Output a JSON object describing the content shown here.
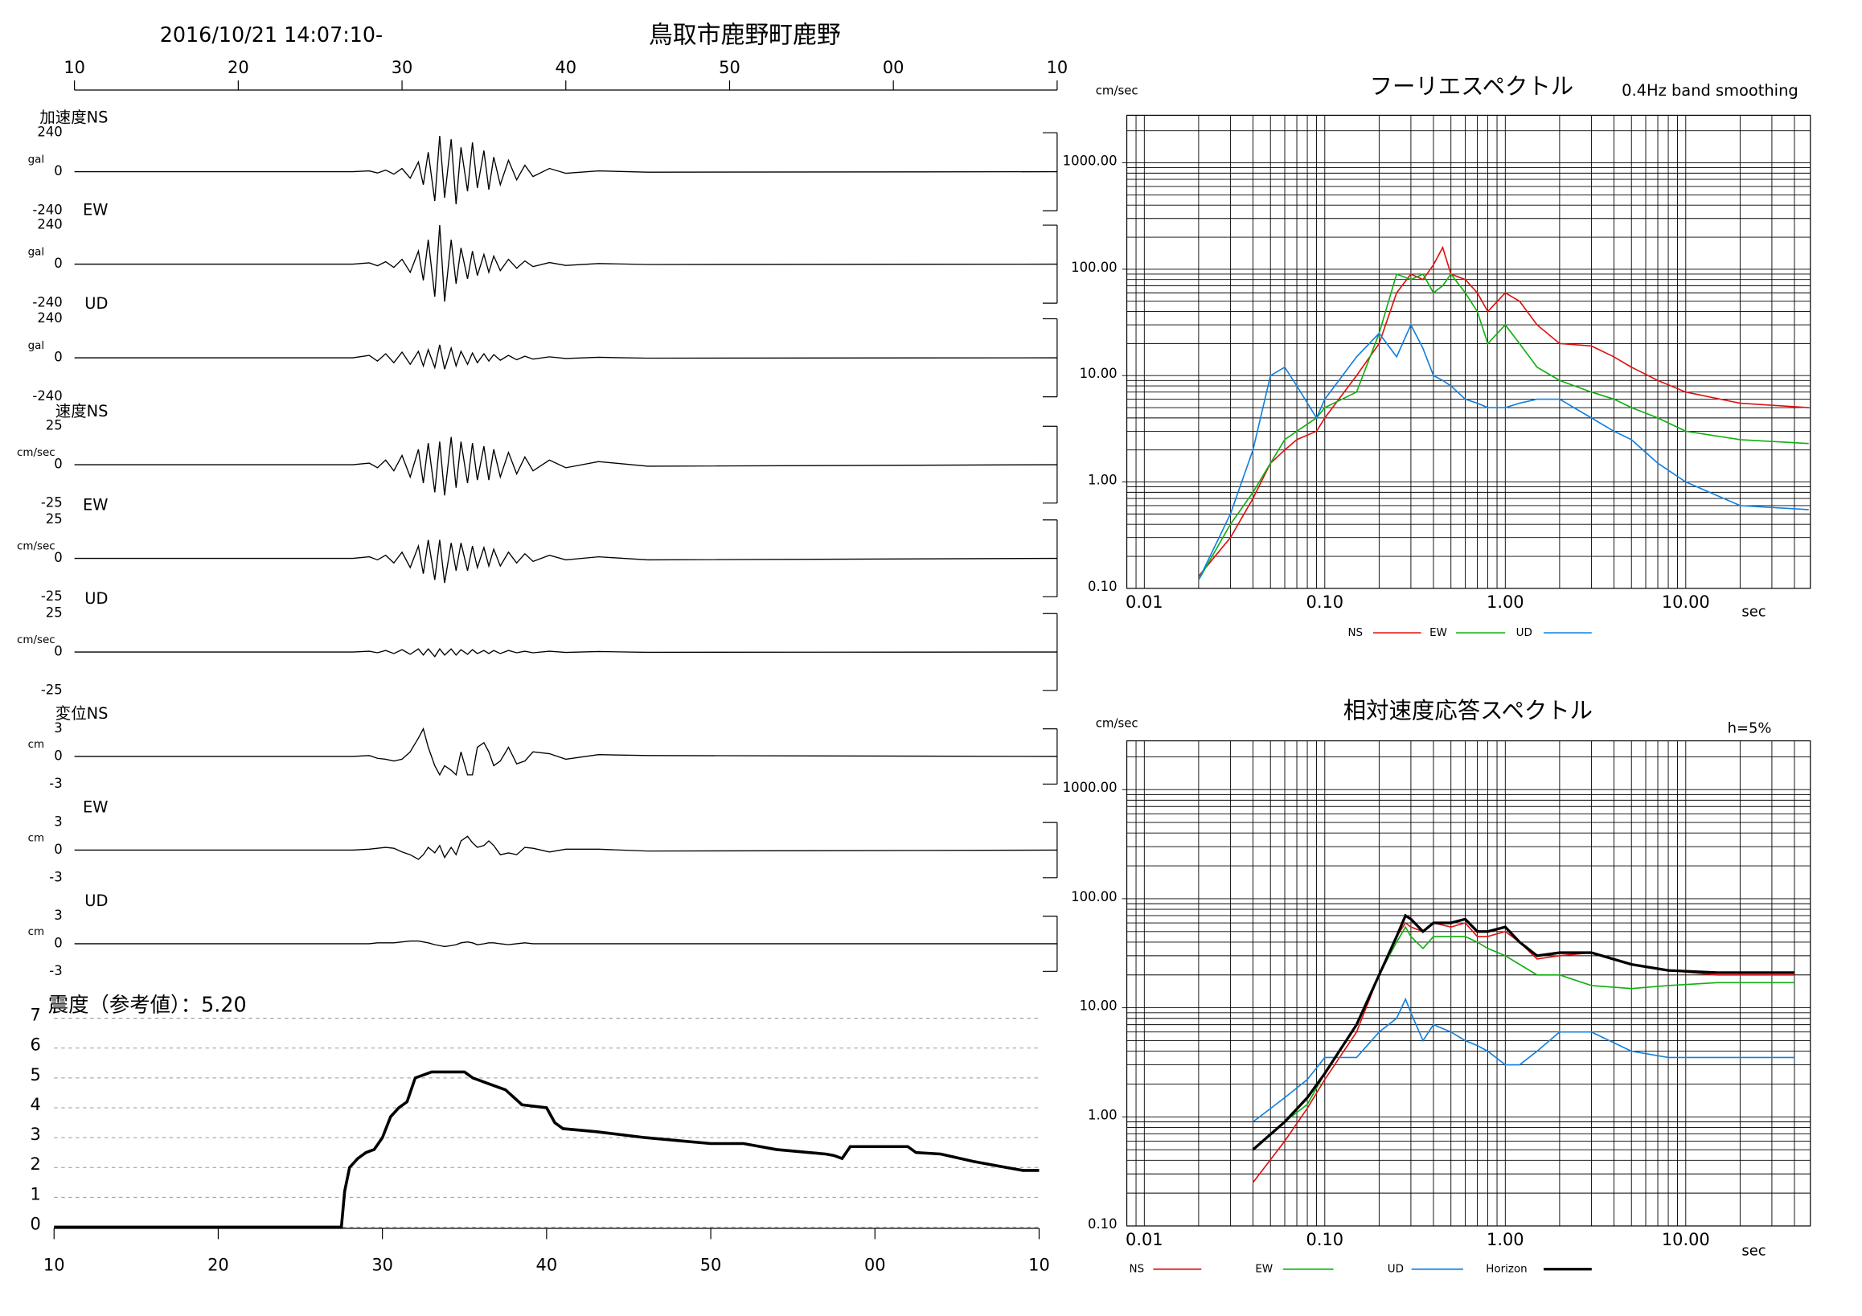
{
  "header": {
    "datetime": "2016/10/21 14:07:10-",
    "station": "鳥取市鹿野町鹿野"
  },
  "chart_data": [
    {
      "type": "line",
      "label": "加速度NS",
      "ylabel": "gal",
      "color": "#000000",
      "xlim": [
        10,
        70
      ],
      "xticks": [
        10,
        20,
        30,
        40,
        50,
        {
          "value": 60,
          "label": "00"
        },
        {
          "value": 70,
          "label": "10"
        }
      ],
      "ylim": [
        -240,
        240
      ],
      "yticks": [
        240,
        0,
        -240
      ],
      "x": [
        10,
        27,
        28,
        28.5,
        29,
        29.5,
        30,
        30.5,
        31,
        31.3,
        31.6,
        32,
        32.3,
        32.6,
        33,
        33.3,
        33.6,
        34,
        34.3,
        34.6,
        35,
        35.3,
        35.6,
        36,
        36.5,
        37,
        37.5,
        38,
        39,
        40,
        42,
        45,
        70
      ],
      "values": [
        0,
        0,
        5,
        -8,
        10,
        -15,
        20,
        -40,
        60,
        -80,
        120,
        -180,
        220,
        -160,
        200,
        -200,
        150,
        -120,
        180,
        -100,
        130,
        -110,
        90,
        -80,
        70,
        -50,
        40,
        -30,
        20,
        -10,
        5,
        -3,
        0
      ]
    },
    {
      "type": "line",
      "label": "EW",
      "ylabel": "gal",
      "color": "#000000",
      "xlim": [
        10,
        70
      ],
      "ylim": [
        -240,
        240
      ],
      "yticks": [
        240,
        0,
        -240
      ],
      "x": [
        10,
        27,
        28,
        28.5,
        29,
        29.5,
        30,
        30.5,
        31,
        31.3,
        31.6,
        32,
        32.3,
        32.6,
        33,
        33.3,
        33.6,
        34,
        34.3,
        34.6,
        35,
        35.3,
        35.6,
        36,
        36.5,
        37,
        37.5,
        38,
        39,
        40,
        42,
        45,
        70
      ],
      "values": [
        0,
        0,
        8,
        -10,
        15,
        -20,
        30,
        -50,
        80,
        -100,
        150,
        -200,
        240,
        -230,
        150,
        -120,
        100,
        -90,
        80,
        -70,
        60,
        -50,
        50,
        -40,
        30,
        -25,
        20,
        -15,
        10,
        -8,
        4,
        -2,
        0
      ]
    },
    {
      "type": "line",
      "label": "UD",
      "ylabel": "gal",
      "color": "#000000",
      "xlim": [
        10,
        70
      ],
      "ylim": [
        -240,
        240
      ],
      "yticks": [
        240,
        0,
        -240
      ],
      "x": [
        10,
        27,
        28,
        28.5,
        29,
        29.5,
        30,
        30.5,
        31,
        31.3,
        31.6,
        32,
        32.3,
        32.6,
        33,
        33.3,
        33.6,
        34,
        34.3,
        34.6,
        35,
        35.3,
        35.6,
        36,
        36.5,
        37,
        37.5,
        38,
        39,
        40,
        42,
        45,
        70
      ],
      "values": [
        0,
        0,
        15,
        -20,
        25,
        -30,
        35,
        -40,
        40,
        -50,
        50,
        -60,
        80,
        -70,
        60,
        -50,
        40,
        -40,
        30,
        -30,
        25,
        -20,
        20,
        -15,
        15,
        -12,
        10,
        -8,
        6,
        -4,
        3,
        -2,
        0
      ]
    },
    {
      "type": "line",
      "label": "速度NS",
      "ylabel": "cm/sec",
      "color": "#000000",
      "xlim": [
        10,
        70
      ],
      "ylim": [
        -25,
        25
      ],
      "yticks": [
        25,
        0,
        -25
      ],
      "x": [
        10,
        27,
        28,
        28.5,
        29,
        29.5,
        30,
        30.5,
        31,
        31.3,
        31.6,
        32,
        32.3,
        32.6,
        33,
        33.3,
        33.6,
        34,
        34.3,
        34.6,
        35,
        35.3,
        35.6,
        36,
        36.5,
        37,
        37.5,
        38,
        39,
        40,
        42,
        45,
        70
      ],
      "values": [
        0,
        0,
        1,
        -2,
        3,
        -4,
        6,
        -8,
        10,
        -12,
        14,
        -18,
        15,
        -20,
        18,
        -15,
        15,
        -12,
        14,
        -10,
        12,
        -10,
        10,
        -8,
        8,
        -6,
        5,
        -4,
        3,
        -2,
        2,
        -1,
        0
      ]
    },
    {
      "type": "line",
      "label": "EW",
      "ylabel": "cm/sec",
      "color": "#000000",
      "xlim": [
        10,
        70
      ],
      "ylim": [
        -25,
        25
      ],
      "yticks": [
        25,
        0,
        -25
      ],
      "x": [
        10,
        27,
        28,
        28.5,
        29,
        29.5,
        30,
        30.5,
        31,
        31.3,
        31.6,
        32,
        32.3,
        32.6,
        33,
        33.3,
        33.6,
        34,
        34.3,
        34.6,
        35,
        35.3,
        35.6,
        36,
        36.5,
        37,
        37.5,
        38,
        39,
        40,
        42,
        45,
        70
      ],
      "values": [
        0,
        0,
        1,
        -1,
        2,
        -3,
        4,
        -6,
        8,
        -10,
        12,
        -14,
        12,
        -16,
        10,
        -8,
        10,
        -8,
        8,
        -6,
        7,
        -5,
        6,
        -5,
        4,
        -3,
        3,
        -2,
        2,
        -1,
        1,
        -1,
        0
      ]
    },
    {
      "type": "line",
      "label": "UD",
      "ylabel": "cm/sec",
      "color": "#000000",
      "xlim": [
        10,
        70
      ],
      "ylim": [
        -25,
        25
      ],
      "yticks": [
        25,
        0,
        -25
      ],
      "x": [
        10,
        27,
        28,
        28.5,
        29,
        29.5,
        30,
        30.5,
        31,
        31.3,
        31.6,
        32,
        32.3,
        32.6,
        33,
        33.3,
        33.6,
        34,
        34.3,
        34.6,
        35,
        35.3,
        35.6,
        36,
        36.5,
        37,
        37.5,
        38,
        39,
        40,
        42,
        45,
        70
      ],
      "values": [
        0,
        0,
        0.5,
        -0.5,
        1,
        -1,
        1.5,
        -1.5,
        2,
        -2,
        2,
        -3,
        2,
        -2,
        2,
        -2,
        1.5,
        -1.5,
        1.5,
        -1,
        1,
        -1,
        1,
        -1,
        1,
        -0.5,
        0.5,
        -0.5,
        0.5,
        -0.3,
        0.3,
        -0.2,
        0
      ]
    },
    {
      "type": "line",
      "label": "変位NS",
      "ylabel": "cm",
      "color": "#000000",
      "xlim": [
        10,
        70
      ],
      "ylim": [
        -3,
        3
      ],
      "yticks": [
        3,
        0,
        -3
      ],
      "x": [
        10,
        27,
        28,
        28.5,
        29,
        29.5,
        30,
        30.5,
        31,
        31.3,
        31.6,
        32,
        32.3,
        32.6,
        33,
        33.3,
        33.6,
        34,
        34.3,
        34.6,
        35,
        35.3,
        35.6,
        36,
        36.5,
        37,
        37.5,
        38,
        39,
        40,
        42,
        45,
        70
      ],
      "values": [
        0,
        0,
        0.1,
        -0.2,
        -0.3,
        -0.5,
        -0.3,
        0.5,
        2,
        3,
        1,
        -1,
        -2,
        -1,
        -1.5,
        -2,
        0.5,
        -2,
        -2,
        1,
        1.5,
        0.5,
        -1,
        -0.5,
        1,
        -0.8,
        -0.5,
        0.5,
        0.3,
        -0.3,
        0.2,
        0.1,
        0
      ]
    },
    {
      "type": "line",
      "label": "EW",
      "ylabel": "cm",
      "color": "#000000",
      "xlim": [
        10,
        70
      ],
      "ylim": [
        -3,
        3
      ],
      "yticks": [
        3,
        0,
        -3
      ],
      "x": [
        10,
        27,
        28,
        28.5,
        29,
        29.5,
        30,
        30.5,
        31,
        31.3,
        31.6,
        32,
        32.3,
        32.6,
        33,
        33.3,
        33.6,
        34,
        34.3,
        34.6,
        35,
        35.3,
        35.6,
        36,
        36.5,
        37,
        37.5,
        38,
        39,
        40,
        42,
        45,
        70
      ],
      "values": [
        0,
        0,
        0.1,
        0.2,
        0.3,
        0.2,
        -0.2,
        -0.5,
        -1,
        -0.5,
        0.3,
        -0.3,
        0.5,
        -0.8,
        0.3,
        -0.5,
        1,
        1.5,
        0.8,
        0.3,
        0.5,
        1,
        0.5,
        -0.5,
        -0.3,
        -0.5,
        0.3,
        0.2,
        -0.2,
        0.1,
        0.1,
        -0.1,
        0
      ]
    },
    {
      "type": "line",
      "label": "UD",
      "ylabel": "cm",
      "color": "#000000",
      "xlim": [
        10,
        70
      ],
      "ylim": [
        -3,
        3
      ],
      "yticks": [
        3,
        0,
        -3
      ],
      "x": [
        10,
        27,
        28,
        28.5,
        29,
        29.5,
        30,
        30.5,
        31,
        31.3,
        31.6,
        32,
        32.3,
        32.6,
        33,
        33.3,
        33.6,
        34,
        34.3,
        34.6,
        35,
        35.3,
        35.6,
        36,
        36.5,
        37,
        37.5,
        38,
        39,
        40,
        42,
        45,
        70
      ],
      "values": [
        0,
        0,
        0,
        0.1,
        0.1,
        0.1,
        0.2,
        0.3,
        0.3,
        0.2,
        0.1,
        -0.1,
        -0.2,
        -0.3,
        -0.2,
        -0.1,
        0.1,
        0.2,
        0.1,
        -0.1,
        0,
        0.1,
        0.1,
        0,
        -0.1,
        0,
        0.1,
        0,
        0,
        0,
        0,
        0,
        0
      ]
    },
    {
      "type": "line",
      "title": "震度（参考値）：5.20",
      "color": "#000000",
      "grid": true,
      "xlim": [
        10,
        70
      ],
      "xticks": [
        10,
        20,
        30,
        40,
        50,
        {
          "value": 60,
          "label": "00"
        },
        {
          "value": 70,
          "label": "10"
        }
      ],
      "ylim": [
        0,
        7
      ],
      "yticks": [
        0,
        1,
        2,
        3,
        4,
        5,
        6,
        7
      ],
      "x": [
        10,
        27.5,
        27.7,
        28,
        28.5,
        29,
        29.5,
        30,
        30.5,
        31,
        31.5,
        32,
        33,
        35,
        35.5,
        36.5,
        37.5,
        38.5,
        40,
        40.5,
        41,
        43,
        46,
        48,
        50,
        52,
        54,
        56,
        57,
        57.5,
        58,
        58.5,
        62,
        62.5,
        64,
        66,
        68,
        69,
        70
      ],
      "values": [
        0,
        0,
        1.2,
        2,
        2.3,
        2.5,
        2.6,
        3,
        3.7,
        4,
        4.2,
        5,
        5.2,
        5.2,
        5,
        4.8,
        4.6,
        4.1,
        4.0,
        3.5,
        3.3,
        3.2,
        3.0,
        2.9,
        2.8,
        2.8,
        2.6,
        2.5,
        2.45,
        2.4,
        2.3,
        2.7,
        2.7,
        2.5,
        2.45,
        2.2,
        2.0,
        1.9,
        1.9
      ]
    },
    {
      "type": "line",
      "title": "フーリエスペクトル",
      "subtitle": "0.4Hz band smoothing",
      "ylabel": "cm/sec",
      "xlabel": "sec",
      "xscale": "log",
      "yscale": "log",
      "grid": true,
      "xlim": [
        0.008,
        49
      ],
      "ylim": [
        0.1,
        2800
      ],
      "xticks": [
        {
          "value": 0.01,
          "label": "0.01"
        },
        {
          "value": 0.1,
          "label": "0.10"
        },
        {
          "value": 1,
          "label": "1.00"
        },
        {
          "value": 10,
          "label": "10.00"
        }
      ],
      "yticks": [
        {
          "value": 0.1,
          "label": "0.10"
        },
        {
          "value": 1,
          "label": "1.00"
        },
        {
          "value": 10,
          "label": "10.00"
        },
        {
          "value": 100,
          "label": "100.00"
        },
        {
          "value": 1000,
          "label": "1000.00"
        }
      ],
      "x": [
        0.02,
        0.03,
        0.04,
        0.05,
        0.06,
        0.07,
        0.09,
        0.1,
        0.15,
        0.2,
        0.25,
        0.3,
        0.35,
        0.4,
        0.45,
        0.5,
        0.6,
        0.7,
        0.8,
        1.0,
        1.2,
        1.5,
        2,
        3,
        4,
        5,
        7,
        10,
        20,
        48
      ],
      "series": [
        {
          "name": "NS",
          "color": "#e01010",
          "values": [
            0.13,
            0.3,
            0.7,
            1.5,
            2,
            2.5,
            3,
            4,
            10,
            20,
            60,
            90,
            80,
            110,
            160,
            90,
            80,
            60,
            40,
            60,
            50,
            30,
            20,
            19,
            15,
            12,
            9,
            7,
            5.5,
            5
          ]
        },
        {
          "name": "EW",
          "color": "#10b010",
          "values": [
            0.12,
            0.4,
            0.8,
            1.5,
            2.5,
            3,
            4,
            5,
            7,
            25,
            90,
            80,
            90,
            60,
            70,
            90,
            60,
            40,
            20,
            30,
            20,
            12,
            9,
            7,
            6,
            5,
            4,
            3,
            2.5,
            2.3
          ]
        },
        {
          "name": "UD",
          "color": "#1080e0",
          "values": [
            0.12,
            0.5,
            2,
            10,
            12,
            8,
            4,
            6,
            15,
            25,
            15,
            30,
            18,
            10,
            9,
            8,
            6,
            5.5,
            5,
            5,
            5.5,
            6,
            6,
            4,
            3,
            2.5,
            1.5,
            1,
            0.6,
            0.55
          ]
        }
      ]
    },
    {
      "type": "line",
      "title": "相対速度応答スペクトル",
      "annotation": "h=5%",
      "ylabel": "cm/sec",
      "xlabel": "sec",
      "xscale": "log",
      "yscale": "log",
      "grid": true,
      "xlim": [
        0.008,
        49
      ],
      "ylim": [
        0.1,
        2800
      ],
      "xticks": [
        {
          "value": 0.01,
          "label": "0.01"
        },
        {
          "value": 0.1,
          "label": "0.10"
        },
        {
          "value": 1,
          "label": "1.00"
        },
        {
          "value": 10,
          "label": "10.00"
        }
      ],
      "yticks": [
        {
          "value": 0.1,
          "label": "0.10"
        },
        {
          "value": 1,
          "label": "1.00"
        },
        {
          "value": 10,
          "label": "10.00"
        },
        {
          "value": 100,
          "label": "100.00"
        },
        {
          "value": 1000,
          "label": "1000.00"
        }
      ],
      "x": [
        0.04,
        0.06,
        0.08,
        0.1,
        0.15,
        0.2,
        0.25,
        0.28,
        0.3,
        0.35,
        0.4,
        0.5,
        0.6,
        0.7,
        0.8,
        1.0,
        1.2,
        1.5,
        2,
        3,
        5,
        8,
        15,
        40
      ],
      "series": [
        {
          "name": "NS",
          "color": "#e01010",
          "values": [
            0.25,
            0.6,
            1.2,
            2.2,
            6,
            20,
            45,
            60,
            55,
            50,
            60,
            55,
            60,
            45,
            45,
            50,
            40,
            28,
            30,
            32,
            25,
            22,
            20,
            20
          ]
        },
        {
          "name": "EW",
          "color": "#10b010",
          "values": [
            0.5,
            0.9,
            1.3,
            2.5,
            7,
            20,
            40,
            55,
            45,
            35,
            45,
            45,
            45,
            40,
            35,
            30,
            25,
            20,
            20,
            16,
            15,
            16,
            17,
            17
          ]
        },
        {
          "name": "UD",
          "color": "#1080e0",
          "values": [
            0.9,
            1.5,
            2.2,
            3.5,
            3.5,
            6,
            8,
            12,
            9,
            5,
            7,
            6,
            5,
            4.5,
            4,
            3,
            3,
            4,
            6,
            6,
            4,
            3.5,
            3.5,
            3.5
          ]
        },
        {
          "name": "Horizon",
          "color": "#000000",
          "values": [
            0.5,
            0.9,
            1.5,
            2.5,
            7,
            20,
            45,
            70,
            65,
            50,
            60,
            60,
            65,
            50,
            50,
            55,
            40,
            30,
            32,
            32,
            25,
            22,
            21,
            21
          ]
        }
      ]
    }
  ]
}
